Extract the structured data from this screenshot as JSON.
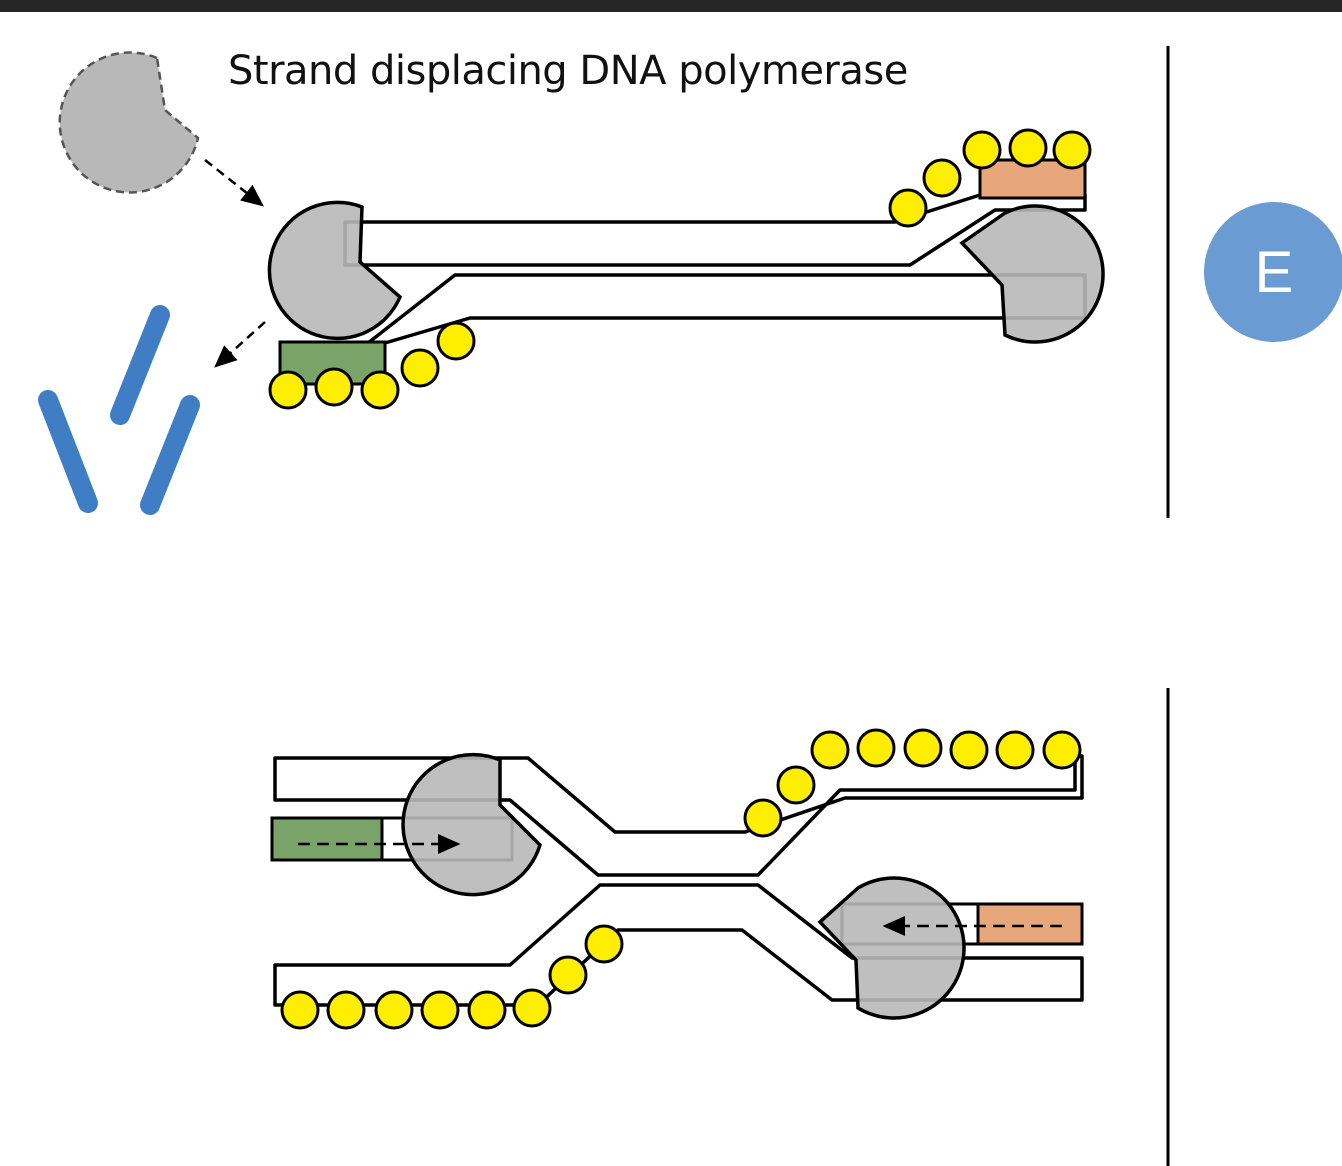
{
  "title": "Strand displacing DNA polymerase",
  "panel_badge": "E",
  "colors": {
    "polymerase_fill": "#b8b8b8",
    "primer_left": "#7aa36a",
    "primer_right": "#e7a77a",
    "bead_fill": "#ffee00",
    "fragment_fill": "#3f7ec4",
    "badge_fill": "#6a9bd3",
    "top_bar": "#262626"
  },
  "icons": [
    "incoming-polymerase-icon",
    "degraded-fragments-icon"
  ]
}
